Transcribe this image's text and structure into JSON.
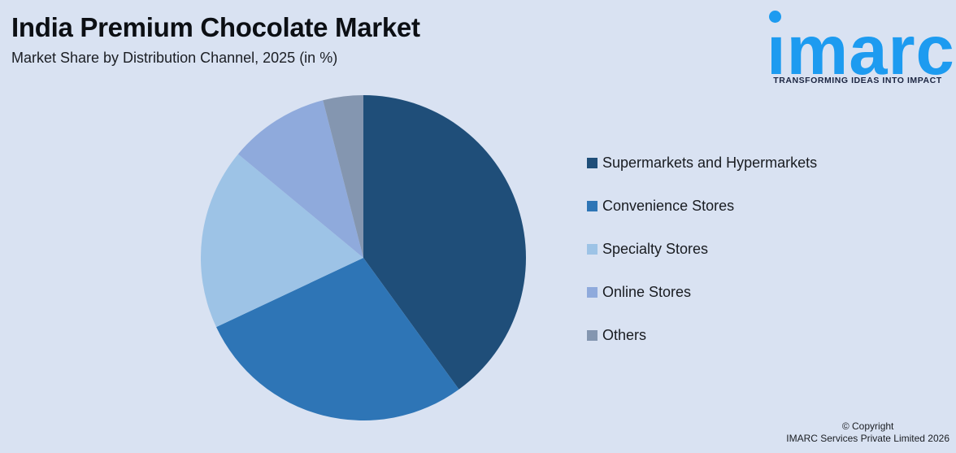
{
  "header": {
    "title": "India Premium Chocolate Market",
    "subtitle": "Market Share by Distribution Channel, 2025 (in %)"
  },
  "logo": {
    "wordmark": "imarc",
    "tagline": "TRANSFORMING IDEAS INTO IMPACT",
    "brand_color": "#1d9bf0",
    "tagline_color": "#1b2440"
  },
  "chart_data": {
    "type": "pie",
    "title": "Market Share by Distribution Channel, 2025 (in %)",
    "unit": "%",
    "start_angle_deg": 0,
    "direction": "clockwise",
    "legend_position": "right",
    "slices": [
      {
        "label": "Supermarkets and Hypermarkets",
        "value": 40,
        "color": "#1F4E79"
      },
      {
        "label": "Convenience Stores",
        "value": 28,
        "color": "#2E75B6"
      },
      {
        "label": "Specialty Stores",
        "value": 18,
        "color": "#9DC3E6"
      },
      {
        "label": "Online Stores",
        "value": 10,
        "color": "#8FAADC"
      },
      {
        "label": "Others",
        "value": 4,
        "color": "#8496B0"
      }
    ]
  },
  "footer": {
    "line1": "© Copyright",
    "line2": "IMARC Services Private Limited 2026"
  },
  "theme": {
    "background": "#d9e2f2"
  }
}
